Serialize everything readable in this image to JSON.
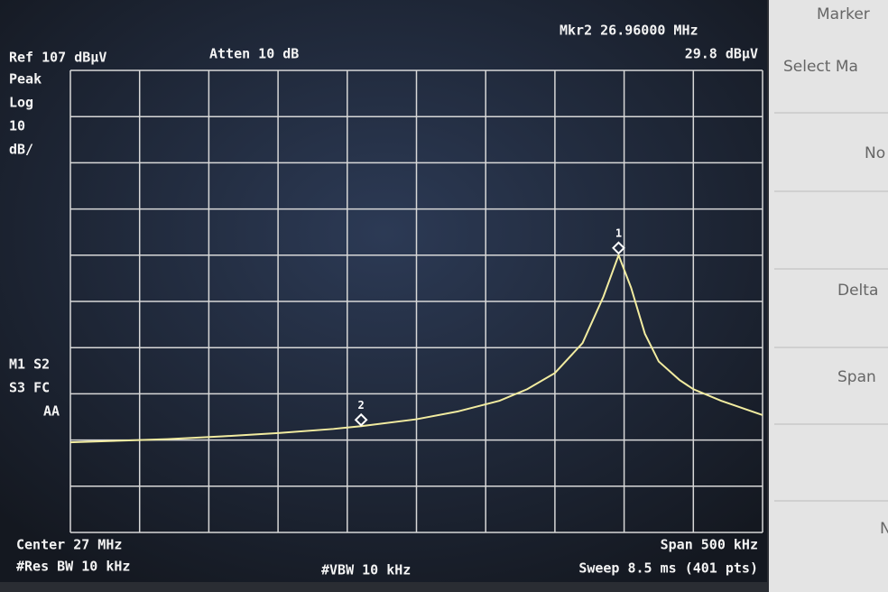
{
  "screen": {
    "ref": "Ref 107 dBµV",
    "atten": "Atten 10 dB",
    "marker_readout": "Mkr2  26.96000 MHz",
    "marker_level": "29.8 dBµV",
    "side_labels": [
      "Peak",
      "Log",
      "10",
      "dB/"
    ],
    "status_labels": [
      "M1 S2",
      "S3 FC",
      "AA"
    ],
    "center": "Center 27 MHz",
    "span": "Span 500 kHz",
    "res_bw": "#Res BW 10 kHz",
    "vbw": "#VBW 10 kHz",
    "sweep": "Sweep 8.5 ms (401 pts)",
    "trace": {
      "color": "#f2eca0",
      "xlim": [
        26.75,
        27.25
      ],
      "ylim": [
        7,
        107
      ],
      "x": [
        26.75,
        26.78,
        26.82,
        26.86,
        26.9,
        26.94,
        26.96,
        27.0,
        27.03,
        27.06,
        27.08,
        27.1,
        27.12,
        27.135,
        27.146,
        27.155,
        27.165,
        27.175,
        27.19,
        27.2,
        27.22,
        27.25
      ],
      "y": [
        26.5,
        26.8,
        27.2,
        27.8,
        28.5,
        29.4,
        30.0,
        31.5,
        33.2,
        35.5,
        38.0,
        41.5,
        48.0,
        58.0,
        67.0,
        60.0,
        50.0,
        44.0,
        40.0,
        38.0,
        35.5,
        32.4
      ]
    },
    "markers": [
      {
        "label": "1",
        "x": 27.146,
        "y": 67
      },
      {
        "label": "2",
        "x": 26.96,
        "y": 29.8
      }
    ]
  },
  "softkeys": {
    "menu": "Marker",
    "select": "Select Ma",
    "keys": [
      "No",
      "Delta",
      "Span",
      "N"
    ]
  }
}
